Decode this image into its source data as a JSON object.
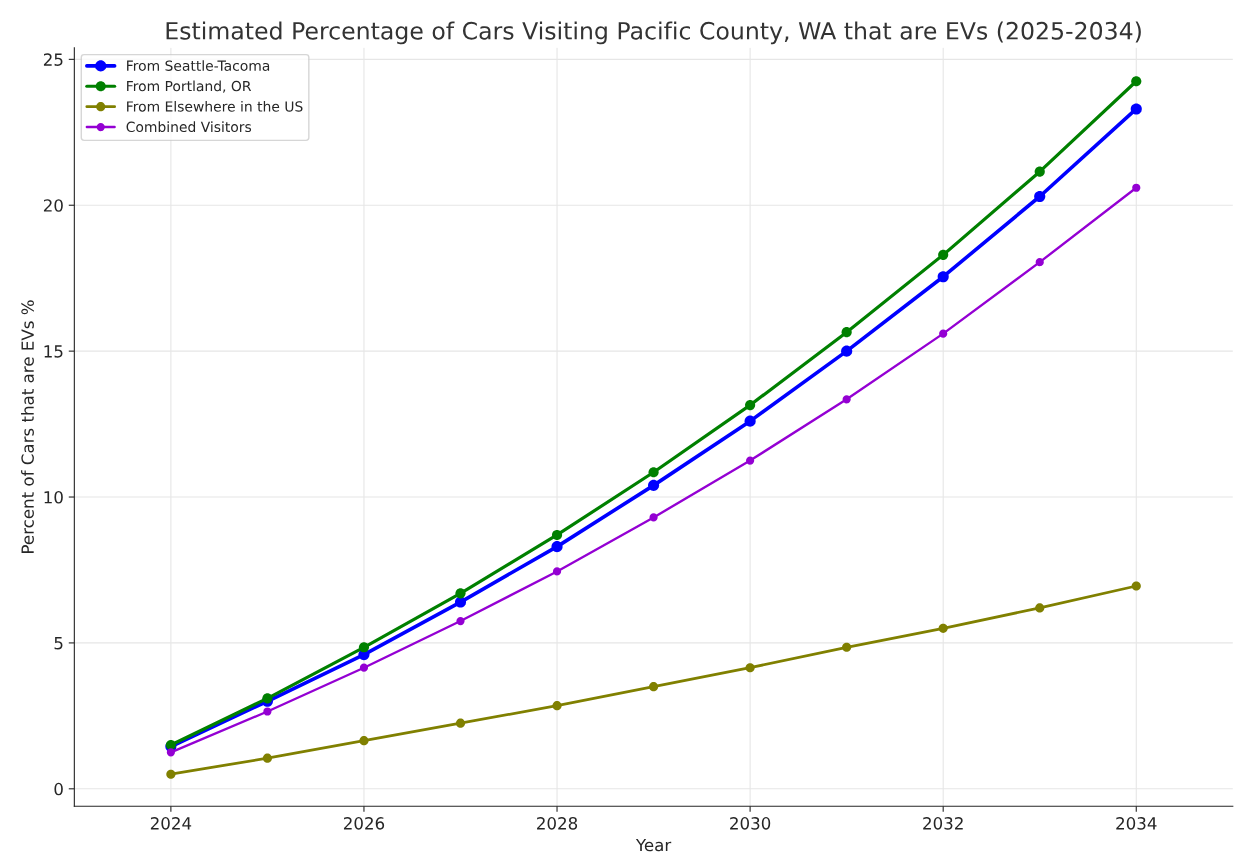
{
  "chart_data": {
    "type": "line",
    "title": "Estimated Percentage of Cars Visiting Pacific County, WA that are EVs (2025-2034)",
    "xlabel": "Year",
    "ylabel": "Percent of Cars that are EVs %",
    "x": [
      2024,
      2025,
      2026,
      2027,
      2028,
      2029,
      2030,
      2031,
      2032,
      2033,
      2034
    ],
    "series": [
      {
        "name": "From Seattle-Tacoma",
        "color": "#0000ff",
        "values": [
          1.45,
          3.0,
          4.6,
          6.4,
          8.3,
          10.4,
          12.6,
          15.0,
          17.55,
          20.3,
          23.3
        ]
      },
      {
        "name": "From Portland, OR",
        "color": "#008000",
        "values": [
          1.5,
          3.1,
          4.85,
          6.7,
          8.7,
          10.85,
          13.15,
          15.65,
          18.3,
          21.15,
          24.25
        ]
      },
      {
        "name": "From Elsewhere in the US",
        "color": "#808000",
        "values": [
          0.5,
          1.05,
          1.65,
          2.25,
          2.85,
          3.5,
          4.15,
          4.85,
          5.5,
          6.2,
          6.95
        ]
      },
      {
        "name": "Combined Visitors",
        "color": "#9400d3",
        "values": [
          1.25,
          2.65,
          4.15,
          5.75,
          7.45,
          9.3,
          11.25,
          13.35,
          15.6,
          18.05,
          20.6
        ]
      }
    ],
    "xlim": [
      2023,
      2035
    ],
    "ylim": [
      -0.6,
      25.4
    ],
    "xticks": [
      2024,
      2026,
      2028,
      2030,
      2032,
      2034
    ],
    "yticks": [
      0,
      5,
      10,
      15,
      20,
      25
    ],
    "grid": true,
    "legend": "top left",
    "marker": "circle",
    "line_style": "solid"
  }
}
